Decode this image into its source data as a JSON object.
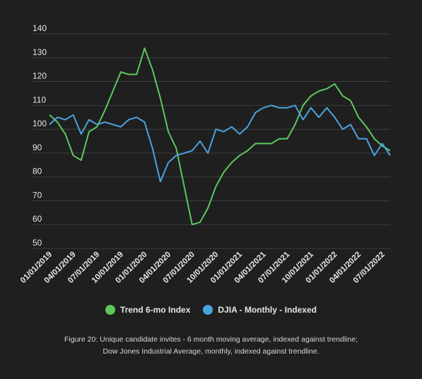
{
  "chart_data": {
    "type": "line",
    "title": "",
    "xlabel": "",
    "ylabel": "",
    "ylim": [
      50,
      140
    ],
    "yticks": [
      50,
      60,
      70,
      80,
      90,
      100,
      110,
      120,
      130,
      140
    ],
    "grid": true,
    "legend_position": "bottom",
    "x_tick_labels": [
      "01/01/2019",
      "04/01/2019",
      "07/01/2019",
      "10/01/2019",
      "01/01/2020",
      "04/01/2020",
      "07/01/2020",
      "10/01/2020",
      "01/01/2021",
      "04/01/2021",
      "07/01/2021",
      "10/01/2021",
      "01/01/2022",
      "04/01/2022",
      "07/01/2022"
    ],
    "x_start": "2019-01-01",
    "x_end": "2022-08-01",
    "series": [
      {
        "name": "Trend 6-mo Index",
        "color": "#5cc85c",
        "x": [
          "2019-01-01",
          "2019-02-01",
          "2019-03-01",
          "2019-04-01",
          "2019-05-01",
          "2019-06-01",
          "2019-07-01",
          "2019-08-01",
          "2019-09-01",
          "2019-10-01",
          "2019-11-01",
          "2019-12-01",
          "2020-01-01",
          "2020-02-01",
          "2020-03-01",
          "2020-04-01",
          "2020-05-01",
          "2020-06-01",
          "2020-07-01",
          "2020-08-01",
          "2020-09-01",
          "2020-10-01",
          "2020-11-01",
          "2020-12-01",
          "2021-01-01",
          "2021-02-01",
          "2021-03-01",
          "2021-04-01",
          "2021-05-01",
          "2021-06-01",
          "2021-07-01",
          "2021-08-01",
          "2021-09-01",
          "2021-10-01",
          "2021-11-01",
          "2021-12-01",
          "2022-01-01",
          "2022-02-01",
          "2022-03-01",
          "2022-04-01",
          "2022-05-01",
          "2022-06-01",
          "2022-07-01",
          "2022-08-01"
        ],
        "values": [
          106,
          103,
          98,
          89,
          87,
          99,
          101,
          108,
          116,
          124,
          123,
          123,
          134,
          125,
          113,
          99,
          92,
          76,
          60,
          61,
          67,
          76,
          82,
          86,
          89,
          91,
          94,
          94,
          94,
          96,
          96,
          102,
          110,
          114,
          116,
          117,
          119,
          114,
          112,
          105,
          101,
          96,
          93,
          91
        ]
      },
      {
        "name": "DJIA - Monthly - Indexed",
        "color": "#4aa3df",
        "x": [
          "2019-01-01",
          "2019-02-01",
          "2019-03-01",
          "2019-04-01",
          "2019-05-01",
          "2019-06-01",
          "2019-07-01",
          "2019-08-01",
          "2019-09-01",
          "2019-10-01",
          "2019-11-01",
          "2019-12-01",
          "2020-01-01",
          "2020-02-01",
          "2020-03-01",
          "2020-04-01",
          "2020-05-01",
          "2020-06-01",
          "2020-07-01",
          "2020-08-01",
          "2020-09-01",
          "2020-10-01",
          "2020-11-01",
          "2020-12-01",
          "2021-01-01",
          "2021-02-01",
          "2021-03-01",
          "2021-04-01",
          "2021-05-01",
          "2021-06-01",
          "2021-07-01",
          "2021-08-01",
          "2021-09-01",
          "2021-10-01",
          "2021-11-01",
          "2021-12-01",
          "2022-01-01",
          "2022-02-01",
          "2022-03-01",
          "2022-04-01",
          "2022-05-01",
          "2022-06-01",
          "2022-07-01",
          "2022-08-01"
        ],
        "values": [
          102,
          105,
          104,
          106,
          98,
          104,
          102,
          103,
          102,
          101,
          104,
          105,
          103,
          92,
          78,
          86,
          89,
          90,
          91,
          95,
          90,
          100,
          99,
          101,
          98,
          101,
          107,
          109,
          110,
          109,
          109,
          110,
          104,
          109,
          105,
          109,
          105,
          100,
          102,
          96,
          96,
          89,
          94,
          89
        ]
      }
    ]
  },
  "caption": {
    "line1": "Figure 20: Unique candidate invites - 6 month moving average, indexed against trendline;",
    "line2": "Dow Jones Industrial Average, monthly, indexed against trendline."
  }
}
